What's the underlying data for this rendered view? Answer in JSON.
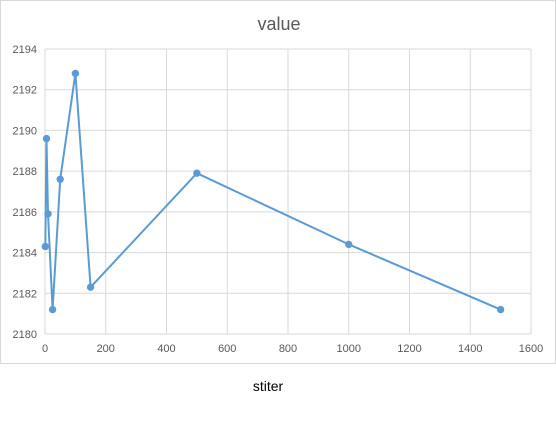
{
  "chart_data": {
    "type": "scatter",
    "title": "value",
    "xlabel": "stiter",
    "ylabel": "",
    "xlim": [
      0,
      1600
    ],
    "ylim": [
      2180,
      2194
    ],
    "xticks": [
      0,
      200,
      400,
      600,
      800,
      1000,
      1200,
      1400,
      1600
    ],
    "yticks": [
      2180,
      2182,
      2184,
      2186,
      2188,
      2190,
      2192,
      2194
    ],
    "grid": true,
    "legend": "none",
    "series": [
      {
        "x": [
          1,
          5,
          10,
          25,
          50,
          100,
          150,
          500,
          1000,
          1500
        ],
        "y": [
          2184.3,
          2189.6,
          2185.9,
          2181.2,
          2187.6,
          2192.8,
          2182.3,
          2187.9,
          2184.4,
          2181.2
        ],
        "color": "#5b9bd5",
        "lines": true,
        "markers": true
      }
    ]
  }
}
